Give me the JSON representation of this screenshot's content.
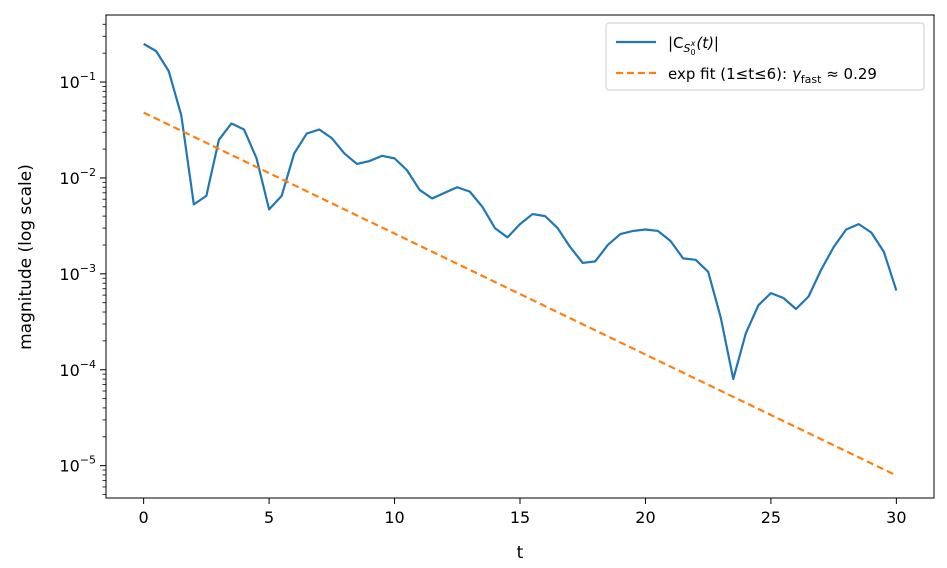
{
  "chart_data": {
    "type": "line",
    "xlabel": "t",
    "ylabel": "magnitude (log scale)",
    "xlim": [
      -1.5,
      31.5
    ],
    "ylim": [
      4.6e-06,
      0.5
    ],
    "yscale": "log",
    "xticks": [
      0,
      5,
      10,
      15,
      20,
      25,
      30
    ],
    "xtick_labels": [
      "0",
      "5",
      "10",
      "15",
      "20",
      "25",
      "30"
    ],
    "yticks": [
      1e-05,
      0.0001,
      0.001,
      0.01,
      0.1
    ],
    "ytick_bases": [
      "10",
      "10",
      "10",
      "10",
      "10"
    ],
    "ytick_exps": [
      "−5",
      "−4",
      "−3",
      "−2",
      "−1"
    ],
    "grid": false,
    "legend_position": "top-right",
    "series": [
      {
        "name": "|C_{S_0^x}(t)|",
        "legend_main": "|C",
        "legend_sub": "S",
        "legend_subsub": "0",
        "legend_subsup": "x",
        "legend_tail": "(t)|",
        "color": "#1f77b4",
        "style": "solid",
        "x": [
          0,
          0.5,
          1,
          1.5,
          2,
          2.5,
          3,
          3.5,
          4,
          4.5,
          5,
          5.5,
          6,
          6.5,
          7,
          7.5,
          8,
          8.5,
          9,
          9.5,
          10,
          10.5,
          11,
          11.5,
          12,
          12.5,
          13,
          13.5,
          14,
          14.5,
          15,
          15.5,
          16,
          16.5,
          17,
          17.5,
          18,
          18.5,
          19,
          19.5,
          20,
          20.5,
          21,
          21.5,
          22,
          22.5,
          23,
          23.5,
          24,
          24.5,
          25,
          25.5,
          26,
          26.5,
          27,
          27.5,
          28,
          28.5,
          29,
          29.5,
          30
        ],
        "y": [
          0.25,
          0.21,
          0.13,
          0.045,
          0.0053,
          0.0065,
          0.025,
          0.037,
          0.032,
          0.016,
          0.0047,
          0.0065,
          0.018,
          0.029,
          0.032,
          0.026,
          0.018,
          0.014,
          0.015,
          0.017,
          0.016,
          0.012,
          0.0075,
          0.0061,
          0.007,
          0.008,
          0.0072,
          0.005,
          0.003,
          0.0024,
          0.0033,
          0.0042,
          0.004,
          0.003,
          0.0019,
          0.0013,
          0.00135,
          0.002,
          0.0026,
          0.0028,
          0.0029,
          0.0028,
          0.0022,
          0.00145,
          0.0014,
          0.00105,
          0.00035,
          8e-05,
          0.00024,
          0.00047,
          0.00063,
          0.00056,
          0.00043,
          0.00058,
          0.0011,
          0.0019,
          0.0029,
          0.0033,
          0.0027,
          0.0017,
          0.00067
        ]
      },
      {
        "name": "exp fit (1≤t≤6): γ_fast ≈ 0.29",
        "legend_main": "exp fit (1≤t≤6): ",
        "legend_gamma": "γ",
        "legend_sub": "fast",
        "legend_tail": " ≈ 0.29",
        "color": "#ff7f0e",
        "style": "dashed",
        "x": [
          0,
          30
        ],
        "y": [
          0.048,
          7.9e-06
        ]
      }
    ]
  }
}
